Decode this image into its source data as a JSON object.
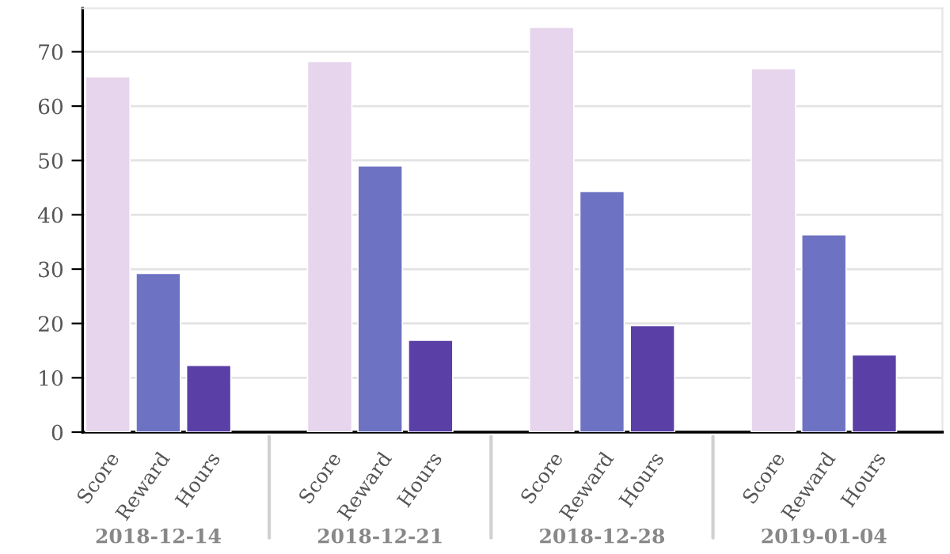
{
  "chart_data": {
    "type": "bar",
    "categories": [
      "2018-12-14",
      "2018-12-21",
      "2018-12-28",
      "2019-01-04"
    ],
    "series": [
      {
        "name": "Score",
        "color": "#e6d5ec",
        "values": [
          65.4,
          68.2,
          74.5,
          66.9
        ]
      },
      {
        "name": "Reward",
        "color": "#6e72c2",
        "values": [
          29.2,
          49.0,
          44.3,
          36.3
        ]
      },
      {
        "name": "Hours",
        "color": "#5a3fa6",
        "values": [
          12.3,
          16.9,
          19.6,
          14.2
        ]
      }
    ],
    "ylim": [
      0,
      78
    ],
    "yticks": [
      0,
      10,
      20,
      30,
      40,
      50,
      60,
      70
    ],
    "grid": "y",
    "legend": false
  }
}
